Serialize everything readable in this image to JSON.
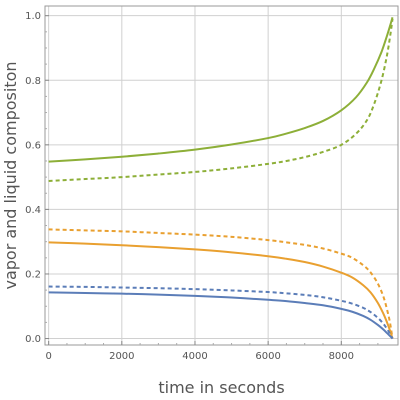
{
  "chart_data": {
    "type": "line",
    "title": "",
    "xlabel": "time in seconds",
    "ylabel": "vapor and liquid compositon",
    "xlim": [
      -100,
      9550
    ],
    "ylim": [
      -0.02,
      1.03
    ],
    "xticks": [
      0,
      2000,
      4000,
      6000,
      8000
    ],
    "xtick_labels": [
      "0",
      "2000",
      "4000",
      "6000",
      "8000"
    ],
    "yticks": [
      0.0,
      0.2,
      0.4,
      0.6,
      0.8,
      1.0
    ],
    "ytick_labels": [
      "0.0",
      "0.2",
      "0.4",
      "0.6",
      "0.8",
      "1.0"
    ],
    "grid": true,
    "legend": "none",
    "series": [
      {
        "color": "#8DAF38",
        "dash": "solid",
        "x": [
          0,
          1000,
          2000,
          3000,
          4000,
          5000,
          6000,
          6500,
          7000,
          7500,
          8000,
          8400,
          8700,
          8900,
          9100,
          9250,
          9350,
          9400
        ],
        "y": [
          0.548,
          0.555,
          0.563,
          0.573,
          0.585,
          0.601,
          0.621,
          0.635,
          0.652,
          0.674,
          0.707,
          0.747,
          0.793,
          0.836,
          0.888,
          0.938,
          0.975,
          0.995
        ]
      },
      {
        "color": "#8DAF38",
        "dash": "dashed",
        "x": [
          0,
          1000,
          2000,
          3000,
          4000,
          5000,
          6000,
          6500,
          7000,
          7500,
          8000,
          8400,
          8700,
          8900,
          9100,
          9250,
          9350,
          9400
        ],
        "y": [
          0.488,
          0.494,
          0.5,
          0.508,
          0.516,
          0.527,
          0.541,
          0.55,
          0.562,
          0.578,
          0.6,
          0.634,
          0.676,
          0.727,
          0.8,
          0.878,
          0.948,
          0.99
        ]
      },
      {
        "color": "#E9A030",
        "dash": "dashed",
        "x": [
          0,
          1000,
          2000,
          3000,
          4000,
          5000,
          6000,
          6500,
          7000,
          7500,
          8000,
          8300,
          8600,
          8800,
          9000,
          9150,
          9250,
          9330,
          9400
        ],
        "y": [
          0.338,
          0.335,
          0.332,
          0.327,
          0.322,
          0.315,
          0.305,
          0.298,
          0.29,
          0.279,
          0.263,
          0.25,
          0.227,
          0.205,
          0.17,
          0.13,
          0.09,
          0.05,
          0.0
        ]
      },
      {
        "color": "#E9A030",
        "dash": "solid",
        "x": [
          0,
          1000,
          2000,
          3000,
          4000,
          5000,
          6000,
          6500,
          7000,
          7500,
          8000,
          8300,
          8600,
          8800,
          9000,
          9150,
          9250,
          9330,
          9400
        ],
        "y": [
          0.298,
          0.294,
          0.289,
          0.283,
          0.276,
          0.267,
          0.255,
          0.247,
          0.237,
          0.223,
          0.204,
          0.189,
          0.165,
          0.143,
          0.11,
          0.077,
          0.05,
          0.025,
          0.0
        ]
      },
      {
        "color": "#5B7DB8",
        "dash": "dashed",
        "x": [
          0,
          1000,
          2000,
          3000,
          4000,
          5000,
          6000,
          6500,
          7000,
          7500,
          8000,
          8300,
          8600,
          8800,
          9000,
          9150,
          9250,
          9330,
          9400
        ],
        "y": [
          0.161,
          0.16,
          0.158,
          0.156,
          0.153,
          0.149,
          0.144,
          0.14,
          0.135,
          0.128,
          0.117,
          0.108,
          0.095,
          0.082,
          0.064,
          0.046,
          0.03,
          0.015,
          0.0
        ]
      },
      {
        "color": "#5B7DB8",
        "dash": "solid",
        "x": [
          0,
          1000,
          2000,
          3000,
          4000,
          5000,
          6000,
          6500,
          7000,
          7500,
          8000,
          8300,
          8600,
          8800,
          9000,
          9150,
          9250,
          9330,
          9400
        ],
        "y": [
          0.143,
          0.141,
          0.139,
          0.136,
          0.132,
          0.127,
          0.12,
          0.116,
          0.11,
          0.103,
          0.092,
          0.083,
          0.07,
          0.058,
          0.042,
          0.028,
          0.017,
          0.008,
          0.0
        ]
      }
    ]
  }
}
